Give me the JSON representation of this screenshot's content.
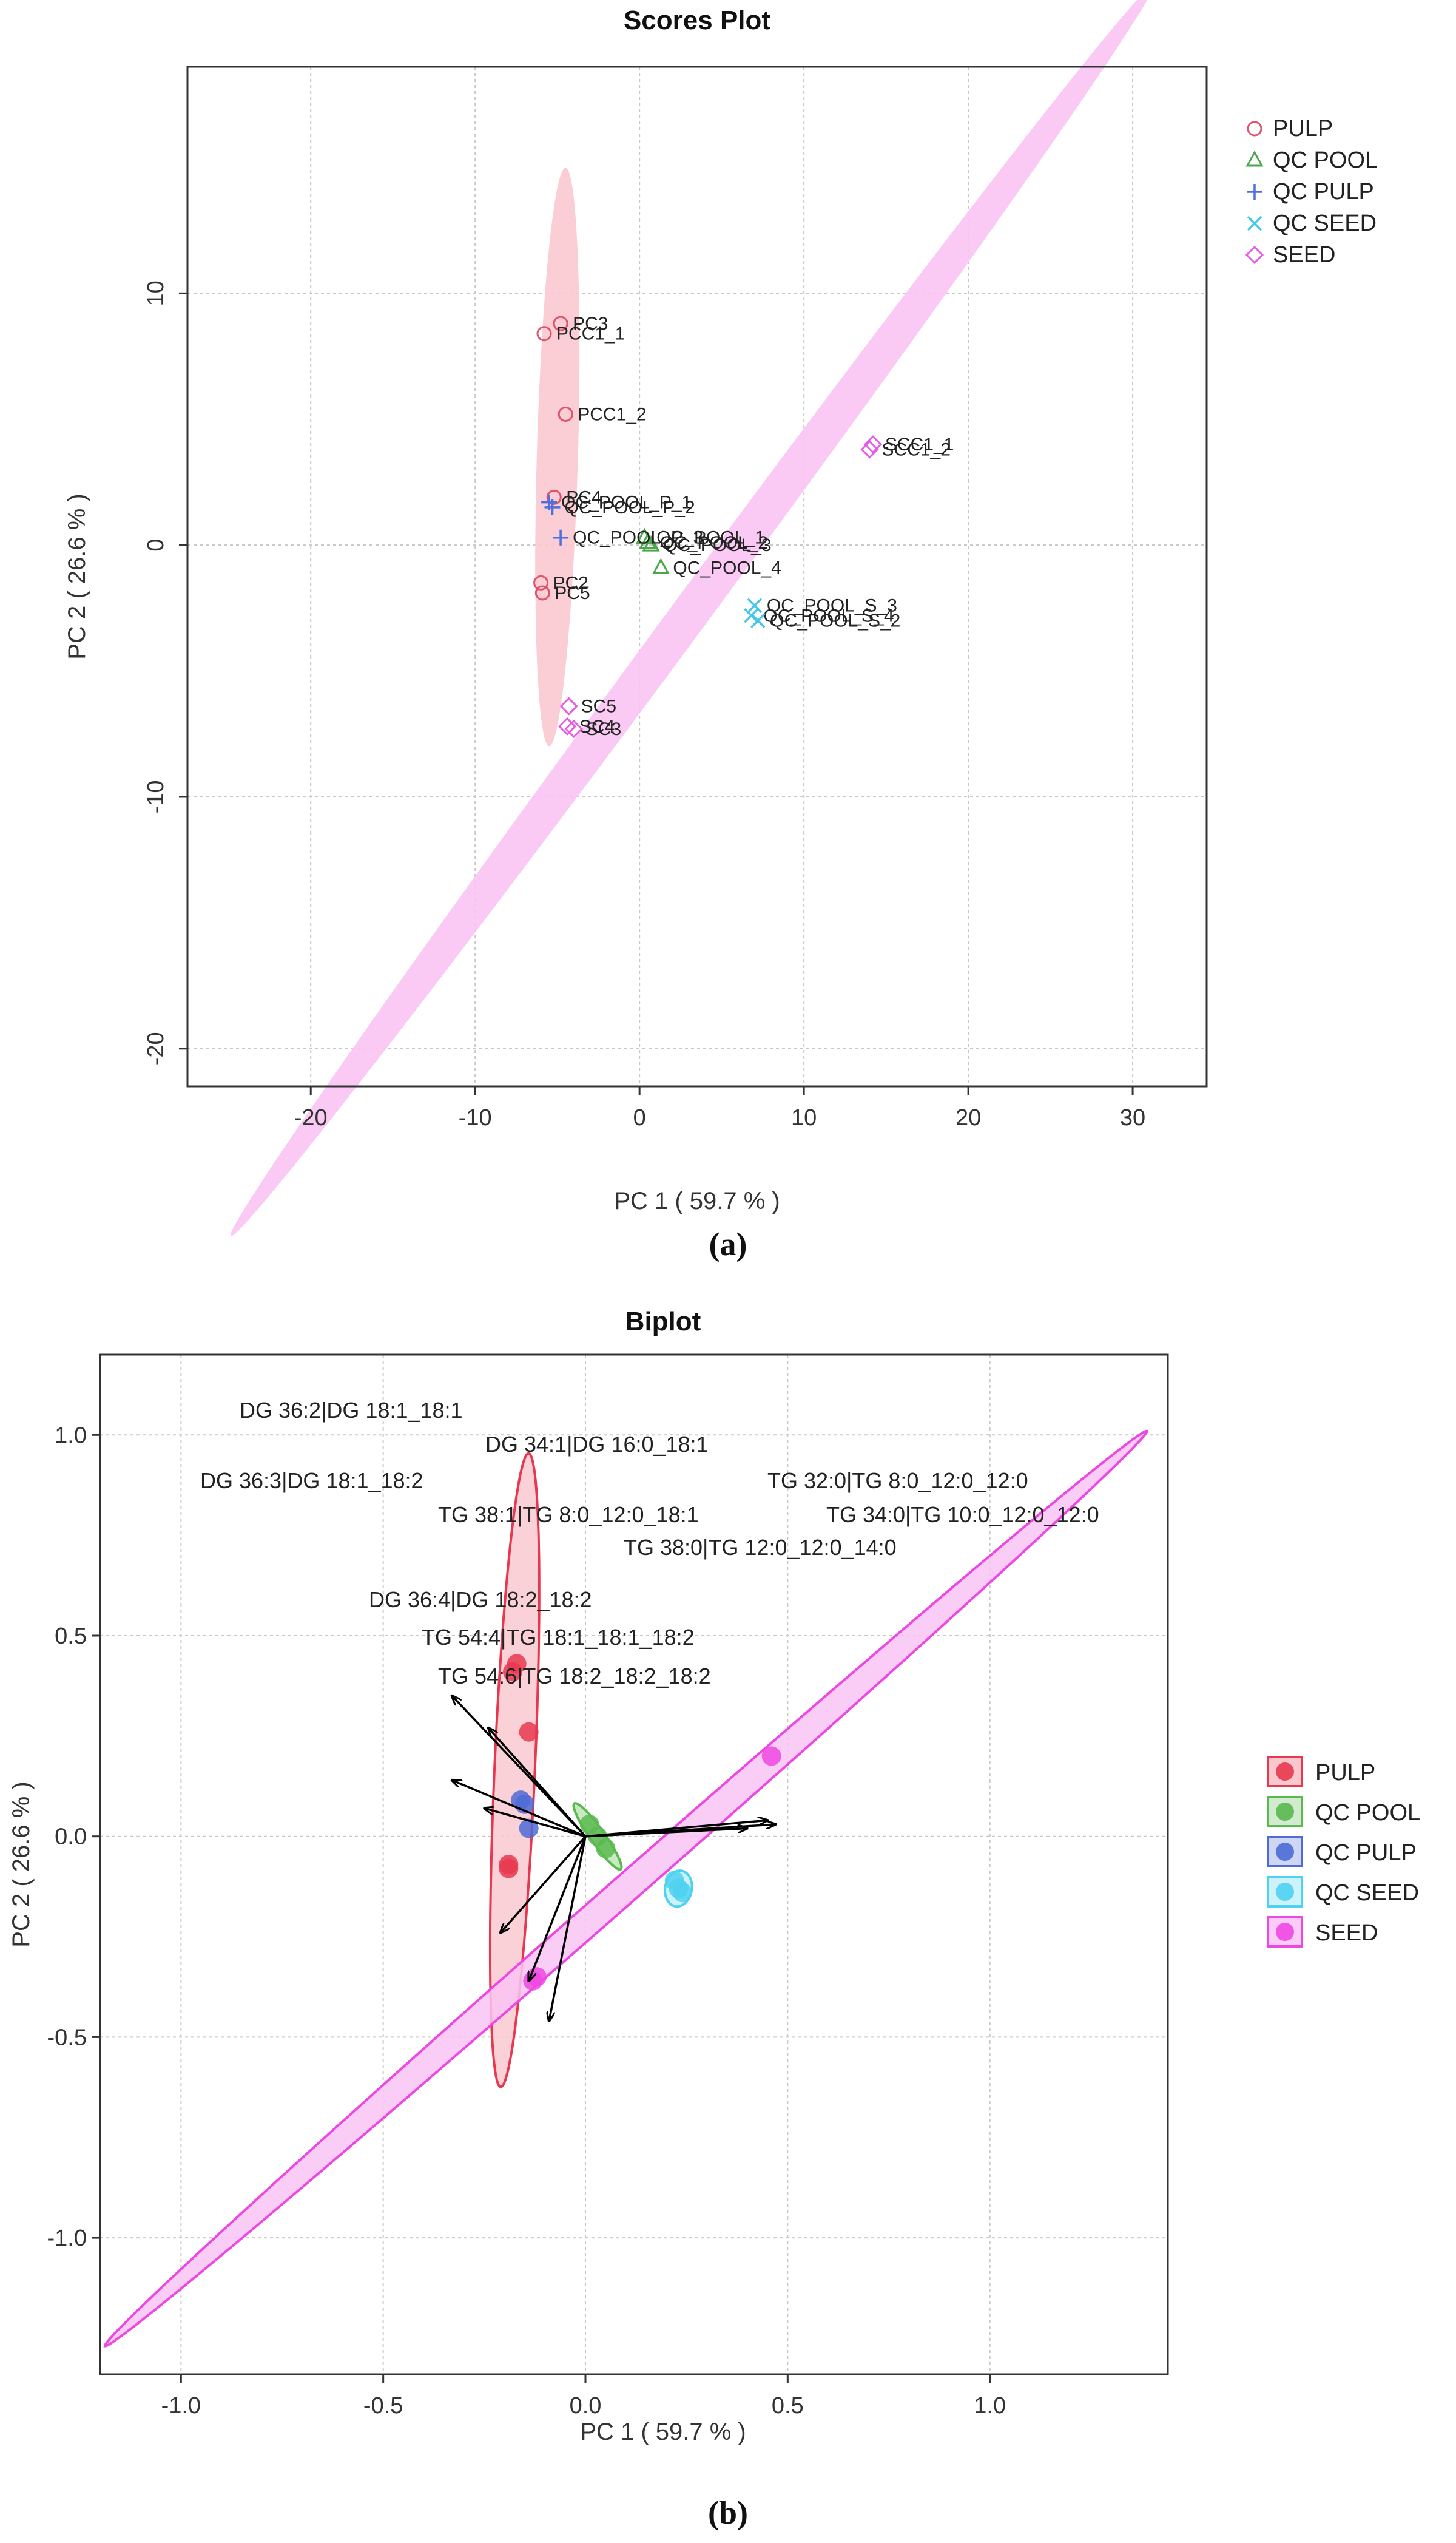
{
  "chart_data": [
    {
      "type": "scatter",
      "panel_label": "(a)",
      "title": "Scores Plot",
      "xlabel": "PC 1 ( 59.7 % )",
      "ylabel": "PC 2 ( 26.6 % )",
      "xlim": [
        -27.5,
        34.5
      ],
      "ylim": [
        -21.5,
        19
      ],
      "xticks": [
        -20,
        -10,
        0,
        10,
        20,
        30
      ],
      "yticks": [
        -20,
        -10,
        0,
        10
      ],
      "grid": true,
      "legend": {
        "position": "top-right",
        "entries": [
          {
            "name": "PULP",
            "marker": "circle",
            "color": "#DF536B"
          },
          {
            "name": "QC POOL",
            "marker": "triangle",
            "color": "#4CA64C"
          },
          {
            "name": "QC PULP",
            "marker": "plus",
            "color": "#4D6FE0"
          },
          {
            "name": "QC SEED",
            "marker": "cross",
            "color": "#47C8E6"
          },
          {
            "name": "SEED",
            "marker": "diamond",
            "color": "#E65CE6"
          }
        ]
      },
      "ellipses": [
        {
          "group": "PULP",
          "center": [
            -5.0,
            3.5
          ],
          "semi_major": 11.5,
          "semi_minor": 1.25,
          "angle_deg": 87.5,
          "fill": "#F9C9CF"
        },
        {
          "group": "SEED",
          "center": [
            3.2,
            -2.6
          ],
          "semi_major": 37.5,
          "semi_minor": 0.95,
          "angle_deg": 41.5,
          "fill": "#F9C4F4"
        }
      ],
      "series": [
        {
          "name": "PULP",
          "marker": "circle",
          "color": "#DF536B",
          "points": [
            {
              "x": -4.8,
              "y": 8.8,
              "label": "PC3"
            },
            {
              "x": -5.8,
              "y": 8.4,
              "label": "PCC1_1"
            },
            {
              "x": -4.5,
              "y": 5.2,
              "label": "PCC1_2"
            },
            {
              "x": -5.2,
              "y": 1.9,
              "label": "PC4"
            },
            {
              "x": -6.0,
              "y": -1.5,
              "label": "PC2"
            },
            {
              "x": -5.9,
              "y": -1.9,
              "label": "PC5"
            }
          ]
        },
        {
          "name": "QC POOL",
          "marker": "triangle",
          "color": "#4CA64C",
          "points": [
            {
              "x": 0.3,
              "y": 0.3,
              "label": "QC_POOL_1"
            },
            {
              "x": 0.5,
              "y": 0.1,
              "label": "QC_POOL_2"
            },
            {
              "x": 0.7,
              "y": 0.0,
              "label": "QC_POOL_3"
            },
            {
              "x": 1.3,
              "y": -0.9,
              "label": "QC_POOL_4"
            }
          ]
        },
        {
          "name": "QC PULP",
          "marker": "plus",
          "color": "#4D6FE0",
          "points": [
            {
              "x": -5.5,
              "y": 1.7,
              "label": "QC_POOL_P_1"
            },
            {
              "x": -5.3,
              "y": 1.5,
              "label": "QC_POOL_P_2"
            },
            {
              "x": -4.8,
              "y": 0.3,
              "label": "QC_POOL_P_3"
            }
          ]
        },
        {
          "name": "QC SEED",
          "marker": "cross",
          "color": "#47C8E6",
          "points": [
            {
              "x": 7.0,
              "y": -2.4,
              "label": "QC_POOL_S_3"
            },
            {
              "x": 6.8,
              "y": -2.8,
              "label": "QC_POOL_S_4"
            },
            {
              "x": 7.2,
              "y": -3.0,
              "label": "QC_POOL_S_2"
            }
          ]
        },
        {
          "name": "SEED",
          "marker": "diamond",
          "color": "#E65CE6",
          "points": [
            {
              "x": 14.2,
              "y": 4.0,
              "label": "SCC1_1"
            },
            {
              "x": 14.0,
              "y": 3.8,
              "label": "SCC1_2"
            },
            {
              "x": -4.3,
              "y": -6.4,
              "label": "SC5"
            },
            {
              "x": -4.4,
              "y": -7.2,
              "label": "SC4"
            },
            {
              "x": -4.0,
              "y": -7.3,
              "label": "SC3"
            }
          ]
        }
      ]
    },
    {
      "type": "scatter",
      "panel_label": "(b)",
      "title": "Biplot",
      "xlabel": "PC 1 ( 59.7 % )",
      "ylabel": "PC 2 ( 26.6 % )",
      "xlim": [
        -1.2,
        1.44
      ],
      "ylim": [
        -1.34,
        1.2
      ],
      "xticks": [
        -1.0,
        -0.5,
        0.0,
        0.5,
        1.0
      ],
      "yticks": [
        -1.0,
        -0.5,
        0.0,
        0.5,
        1.0
      ],
      "grid": true,
      "legend": {
        "position": "right",
        "entries": [
          {
            "name": "PULP",
            "color": "#E8384F"
          },
          {
            "name": "QC POOL",
            "color": "#5AB84F"
          },
          {
            "name": "QC PULP",
            "color": "#4E6BD6"
          },
          {
            "name": "QC SEED",
            "color": "#4FD1F0"
          },
          {
            "name": "SEED",
            "color": "#EE48E2"
          }
        ]
      },
      "ellipses": [
        {
          "group": "PULP",
          "center": [
            -0.175,
            0.165
          ],
          "semi_major": 0.79,
          "semi_minor": 0.05,
          "angle_deg": 87.5,
          "fill": "#F9C9CF",
          "stroke": "#E8384F"
        },
        {
          "group": "SEED",
          "center": [
            0.1,
            -0.13
          ],
          "semi_major": 1.72,
          "semi_minor": 0.035,
          "angle_deg": 41.5,
          "fill": "#F9C4F4",
          "stroke": "#EE48E2"
        },
        {
          "group": "QC POOL",
          "center": [
            0.03,
            0.0
          ],
          "semi_major": 0.1,
          "semi_minor": 0.018,
          "angle_deg": -55,
          "fill": "#BDE6B6",
          "stroke": "#5AB84F"
        },
        {
          "group": "QC SEED",
          "center": [
            0.23,
            -0.13
          ],
          "semi_major": 0.045,
          "semi_minor": 0.033,
          "angle_deg": 80,
          "fill": "#C6F0FA",
          "stroke": "#4FD1F0"
        }
      ],
      "series": [
        {
          "name": "PULP",
          "points": [
            [
              -0.17,
              0.43
            ],
            [
              -0.18,
              0.41
            ],
            [
              -0.14,
              0.26
            ],
            [
              -0.19,
              -0.07
            ],
            [
              -0.19,
              -0.08
            ]
          ]
        },
        {
          "name": "QC POOL",
          "points": [
            [
              0.01,
              0.03
            ],
            [
              0.03,
              0.0
            ],
            [
              0.05,
              -0.03
            ]
          ]
        },
        {
          "name": "QC PULP",
          "points": [
            [
              -0.16,
              0.09
            ],
            [
              -0.15,
              0.08
            ],
            [
              -0.14,
              0.02
            ]
          ]
        },
        {
          "name": "QC SEED",
          "points": [
            [
              0.22,
              -0.11
            ],
            [
              0.23,
              -0.13
            ],
            [
              0.24,
              -0.14
            ]
          ]
        },
        {
          "name": "SEED",
          "points": [
            [
              0.46,
              0.2
            ],
            [
              -0.12,
              -0.35
            ],
            [
              -0.13,
              -0.36
            ]
          ]
        }
      ],
      "loadings": [
        {
          "label": "DG 36:2|DG 18:1_18:1",
          "x": -0.33,
          "y": 0.35
        },
        {
          "label": "DG 34:1|DG 16:0_18:1",
          "x": -0.24,
          "y": 0.27
        },
        {
          "label": "DG 36:3|DG 18:1_18:2",
          "x": -0.33,
          "y": 0.14
        },
        {
          "label": "TG 38:1|TG 8:0_12:0_18:1",
          "x": -0.25,
          "y": 0.07
        },
        {
          "label": "TG 32:0|TG 8:0_12:0_12:0",
          "x": 0.45,
          "y": 0.04
        },
        {
          "label": "TG 34:0|TG 10:0_12:0_12:0",
          "x": 0.47,
          "y": 0.03
        },
        {
          "label": "TG 38:0|TG 12:0_12:0_14:0",
          "x": 0.4,
          "y": 0.02
        },
        {
          "label": "DG 36:4|DG 18:2_18:2",
          "x": -0.21,
          "y": -0.24
        },
        {
          "label": "TG 54:4|TG 18:1_18:1_18:2",
          "x": -0.14,
          "y": -0.36
        },
        {
          "label": "TG 54:6|TG 18:2_18:2_18:2",
          "x": -0.09,
          "y": -0.46
        }
      ]
    }
  ]
}
